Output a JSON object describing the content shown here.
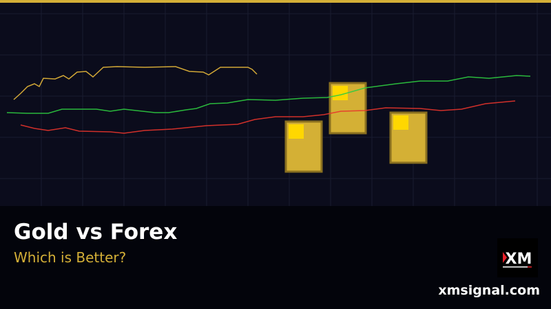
{
  "title": "Gold vs Forex",
  "subtitle": "Which is Better?",
  "website": "xmsignal.com",
  "logo_text": "XM",
  "colors": {
    "accent_gold": "#d4af37",
    "bar_gold": "#d4b035",
    "bar_highlight": "#ffd700",
    "line_gold": "#e8b93a",
    "line_green": "#2ecc40",
    "line_red": "#e8342c",
    "background": "#0b0c1c"
  },
  "icons": [
    "xm-logo",
    "gold-bar-icon"
  ]
}
